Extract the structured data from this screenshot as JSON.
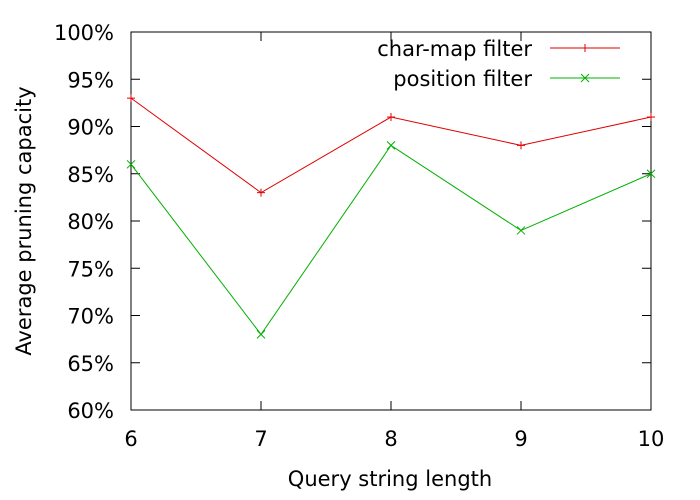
{
  "chart_data": {
    "type": "line",
    "title": "",
    "xlabel": "Query string length",
    "ylabel": "Average pruning capacity",
    "x": [
      6,
      7,
      8,
      9,
      10
    ],
    "xlim": [
      6,
      10
    ],
    "ylim": [
      60,
      100
    ],
    "x_ticks": [
      "6",
      "7",
      "8",
      "9",
      "10"
    ],
    "y_ticks": [
      "60%",
      "65%",
      "70%",
      "75%",
      "80%",
      "85%",
      "90%",
      "95%",
      "100%"
    ],
    "y_tick_values": [
      60,
      65,
      70,
      75,
      80,
      85,
      90,
      95,
      100
    ],
    "grid": false,
    "legend_position": "top-right",
    "series": [
      {
        "name": "char-map filter",
        "color": "#e00000",
        "marker": "plus",
        "values": [
          93,
          83,
          91,
          88,
          91
        ]
      },
      {
        "name": "position filter",
        "color": "#00b000",
        "marker": "cross",
        "values": [
          86,
          68,
          88,
          79,
          85
        ]
      }
    ]
  }
}
